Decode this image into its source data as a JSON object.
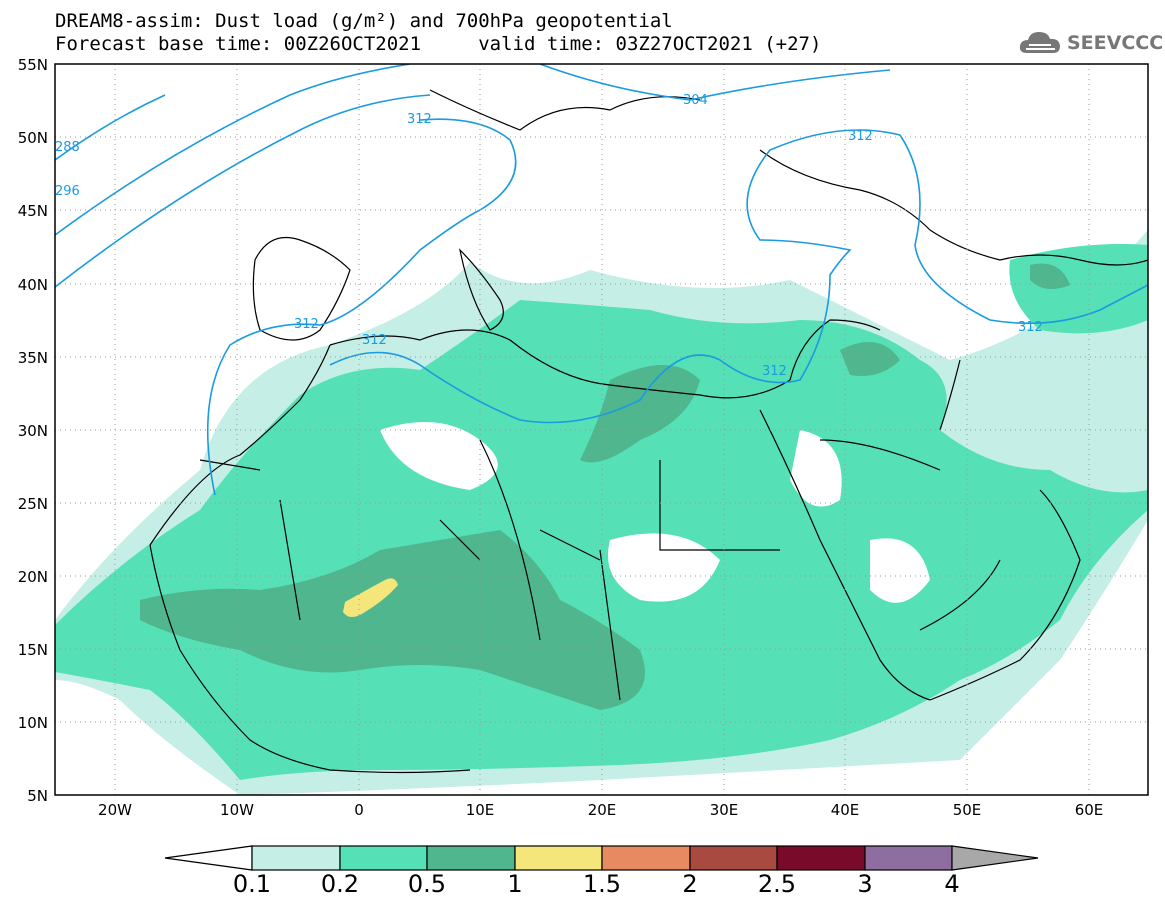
{
  "title": {
    "line1": "DREAM8-assim: Dust load (g/m²) and 700hPa geopotential",
    "line2": "Forecast base time: 00Z26OCT2021     valid time: 03Z27OCT2021 (+27)"
  },
  "logo": {
    "icon": "cloud-icon",
    "text": "SEEVCCC"
  },
  "axes": {
    "lat_labels": [
      "55N",
      "50N",
      "45N",
      "40N",
      "35N",
      "30N",
      "25N",
      "20N",
      "15N",
      "10N",
      "5N"
    ],
    "lon_labels": [
      "20W",
      "10W",
      "0",
      "10E",
      "20E",
      "30E",
      "40E",
      "50E",
      "60E"
    ]
  },
  "contours": {
    "color": "#1a9be0",
    "labels": [
      "288",
      "296",
      "312",
      "304",
      "312",
      "312",
      "312",
      "312",
      "312"
    ]
  },
  "colorbar": {
    "labels": [
      "0.1",
      "0.2",
      "0.5",
      "1",
      "1.5",
      "2",
      "2.5",
      "3",
      "4"
    ],
    "colors": [
      "#ffffff",
      "#c4eee6",
      "#55e0b6",
      "#4fb68e",
      "#f5e67c",
      "#e88a61",
      "#a84a40",
      "#7a0a2a",
      "#8e6ea0",
      "#a8a8a8"
    ]
  }
}
